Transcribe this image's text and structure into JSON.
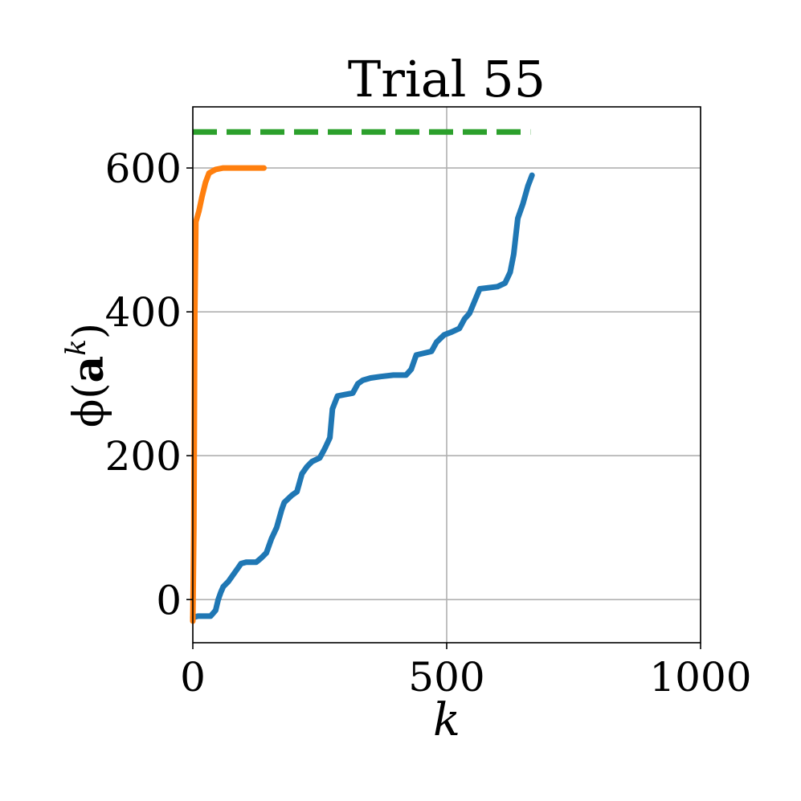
{
  "chart_data": {
    "type": "line",
    "title": "Trial 55",
    "xlabel": "k",
    "ylabel": "ϕ(a^k)",
    "ylabel_parts": {
      "prefix": "ϕ(",
      "bold": "a",
      "sup": "k",
      "suffix": ")"
    },
    "xlim": [
      0,
      1000
    ],
    "ylim": [
      -60,
      685
    ],
    "xticks": [
      0,
      500,
      1000
    ],
    "xtick_labels": [
      "0",
      "500",
      "1000"
    ],
    "yticks": [
      0,
      200,
      400,
      600
    ],
    "ytick_labels": [
      "0",
      "200",
      "400",
      "600"
    ],
    "grid": true,
    "legend": "none",
    "series": [
      {
        "color": "#1f77b4",
        "style": "solid",
        "points": [
          [
            0,
            -25
          ],
          [
            10,
            -23
          ],
          [
            35,
            -23
          ],
          [
            45,
            -15
          ],
          [
            50,
            0
          ],
          [
            55,
            10
          ],
          [
            60,
            18
          ],
          [
            70,
            25
          ],
          [
            80,
            35
          ],
          [
            90,
            45
          ],
          [
            95,
            50
          ],
          [
            105,
            52
          ],
          [
            125,
            52
          ],
          [
            135,
            58
          ],
          [
            145,
            65
          ],
          [
            155,
            85
          ],
          [
            165,
            100
          ],
          [
            175,
            125
          ],
          [
            180,
            135
          ],
          [
            195,
            145
          ],
          [
            205,
            150
          ],
          [
            215,
            175
          ],
          [
            225,
            185
          ],
          [
            235,
            192
          ],
          [
            250,
            197
          ],
          [
            260,
            210
          ],
          [
            270,
            225
          ],
          [
            275,
            265
          ],
          [
            285,
            283
          ],
          [
            300,
            285
          ],
          [
            315,
            287
          ],
          [
            325,
            300
          ],
          [
            335,
            305
          ],
          [
            350,
            308
          ],
          [
            370,
            310
          ],
          [
            395,
            312
          ],
          [
            420,
            312
          ],
          [
            430,
            320
          ],
          [
            440,
            340
          ],
          [
            470,
            345
          ],
          [
            480,
            358
          ],
          [
            495,
            368
          ],
          [
            510,
            372
          ],
          [
            525,
            377
          ],
          [
            535,
            390
          ],
          [
            545,
            398
          ],
          [
            555,
            415
          ],
          [
            565,
            432
          ],
          [
            600,
            435
          ],
          [
            615,
            440
          ],
          [
            625,
            455
          ],
          [
            632,
            480
          ],
          [
            640,
            530
          ],
          [
            650,
            550
          ],
          [
            660,
            575
          ],
          [
            668,
            590
          ]
        ]
      },
      {
        "color": "#ff7f0e",
        "style": "solid",
        "points": [
          [
            0,
            -30
          ],
          [
            2,
            100
          ],
          [
            4,
            400
          ],
          [
            6,
            525
          ],
          [
            12,
            540
          ],
          [
            18,
            560
          ],
          [
            25,
            580
          ],
          [
            32,
            593
          ],
          [
            45,
            598
          ],
          [
            60,
            600
          ],
          [
            90,
            600
          ],
          [
            140,
            600
          ]
        ]
      },
      {
        "color": "#2ca02c",
        "style": "dashed",
        "points": [
          [
            0,
            650
          ],
          [
            665,
            650
          ]
        ]
      }
    ]
  }
}
